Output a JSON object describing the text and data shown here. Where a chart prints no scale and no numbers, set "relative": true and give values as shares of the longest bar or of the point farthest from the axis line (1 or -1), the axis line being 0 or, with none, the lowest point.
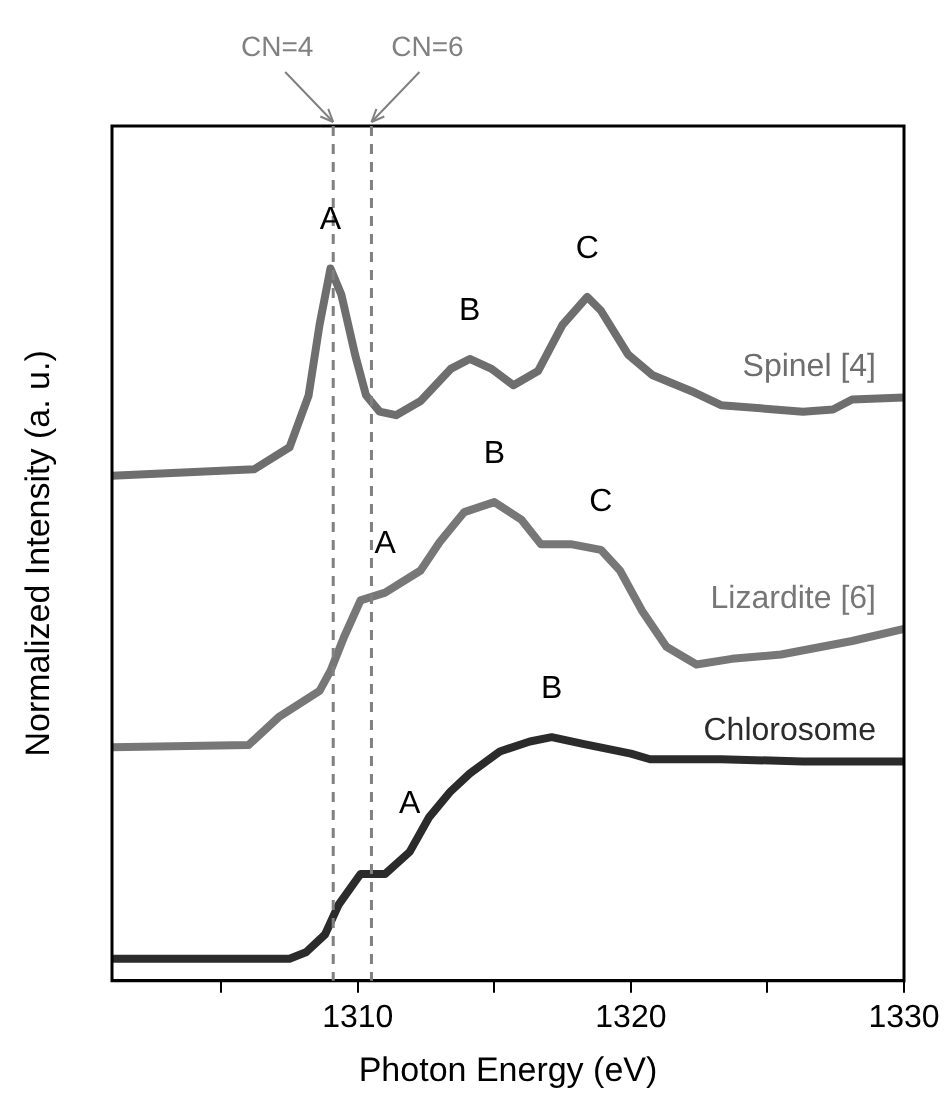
{
  "chart_data": {
    "type": "line",
    "relative": true,
    "xlabel": "Photon Energy (eV)",
    "ylabel": "Normalized Intensity (a. u.)",
    "xlim": [
      1301,
      1330
    ],
    "xticks": [
      {
        "value": 1305,
        "label": null
      },
      1310,
      {
        "value": 1315,
        "label": null
      },
      1320,
      {
        "value": 1325,
        "label": null
      },
      1330
    ],
    "grid": false,
    "legend": false,
    "marker": "none",
    "line_style": "solid",
    "series": [
      {
        "name": "Spinel [4]",
        "color": "#6e6e6e",
        "x": [
          1301.0,
          1306.2,
          1307.5,
          1308.2,
          1308.6,
          1309.0,
          1309.4,
          1309.9,
          1310.3,
          1310.8,
          1311.4,
          1312.3,
          1313.4,
          1314.1,
          1314.9,
          1315.7,
          1316.6,
          1317.5,
          1318.4,
          1318.9,
          1319.9,
          1320.8,
          1322.2,
          1323.3,
          1326.3,
          1327.4,
          1328.1,
          1330.0
        ],
        "values": [
          0.709,
          0.718,
          0.749,
          0.822,
          0.921,
          1.0,
          0.963,
          0.879,
          0.822,
          0.799,
          0.794,
          0.814,
          0.859,
          0.873,
          0.859,
          0.836,
          0.856,
          0.921,
          0.96,
          0.941,
          0.879,
          0.85,
          0.828,
          0.808,
          0.799,
          0.802,
          0.816,
          0.819
        ]
      },
      {
        "name": "Lizardite [6]",
        "color": "#777777",
        "x": [
          1301.0,
          1306.0,
          1307.1,
          1308.6,
          1309.0,
          1309.5,
          1310.1,
          1311.0,
          1312.3,
          1313.0,
          1313.9,
          1315.0,
          1316.0,
          1316.7,
          1317.8,
          1318.9,
          1319.6,
          1320.4,
          1321.3,
          1322.4,
          1323.7,
          1325.5,
          1328.1,
          1330.0
        ],
        "values": [
          0.328,
          0.331,
          0.37,
          0.407,
          0.435,
          0.483,
          0.534,
          0.545,
          0.576,
          0.616,
          0.658,
          0.672,
          0.647,
          0.613,
          0.613,
          0.605,
          0.576,
          0.52,
          0.469,
          0.444,
          0.452,
          0.458,
          0.477,
          0.494
        ]
      },
      {
        "name": "Chlorosome",
        "color": "#2b2b2b",
        "x": [
          1301.0,
          1307.5,
          1308.1,
          1308.8,
          1309.3,
          1310.1,
          1311.0,
          1311.9,
          1312.6,
          1313.4,
          1314.1,
          1315.2,
          1316.3,
          1317.1,
          1318.2,
          1320.0,
          1320.7,
          1323.3,
          1326.3,
          1330.0
        ],
        "values": [
          0.031,
          0.031,
          0.04,
          0.065,
          0.107,
          0.15,
          0.15,
          0.181,
          0.229,
          0.266,
          0.291,
          0.322,
          0.336,
          0.342,
          0.333,
          0.319,
          0.311,
          0.311,
          0.308,
          0.308
        ]
      }
    ],
    "ref_lines": [
      {
        "axis": "x",
        "value": 1309.1,
        "color": "#808080",
        "line_style": "dashed"
      },
      {
        "axis": "x",
        "value": 1310.5,
        "color": "#808080",
        "line_style": "dashed"
      }
    ],
    "annotations": [
      {
        "text": "CN=4",
        "x": 1309.1
      },
      {
        "text": "CN=6",
        "x": 1310.5
      },
      {
        "text": "A",
        "x": 1309.0,
        "y": 1.0
      },
      {
        "text": "B",
        "x": 1314.1,
        "y": 0.873
      },
      {
        "text": "C",
        "x": 1318.4,
        "y": 0.96
      },
      {
        "text": "A",
        "x": 1311.0,
        "y": 0.545
      },
      {
        "text": "B",
        "x": 1315.0,
        "y": 0.672
      },
      {
        "text": "C",
        "x": 1318.9,
        "y": 0.605
      },
      {
        "text": "A",
        "x": 1311.9,
        "y": 0.181
      },
      {
        "text": "B",
        "x": 1317.1,
        "y": 0.342
      }
    ]
  }
}
